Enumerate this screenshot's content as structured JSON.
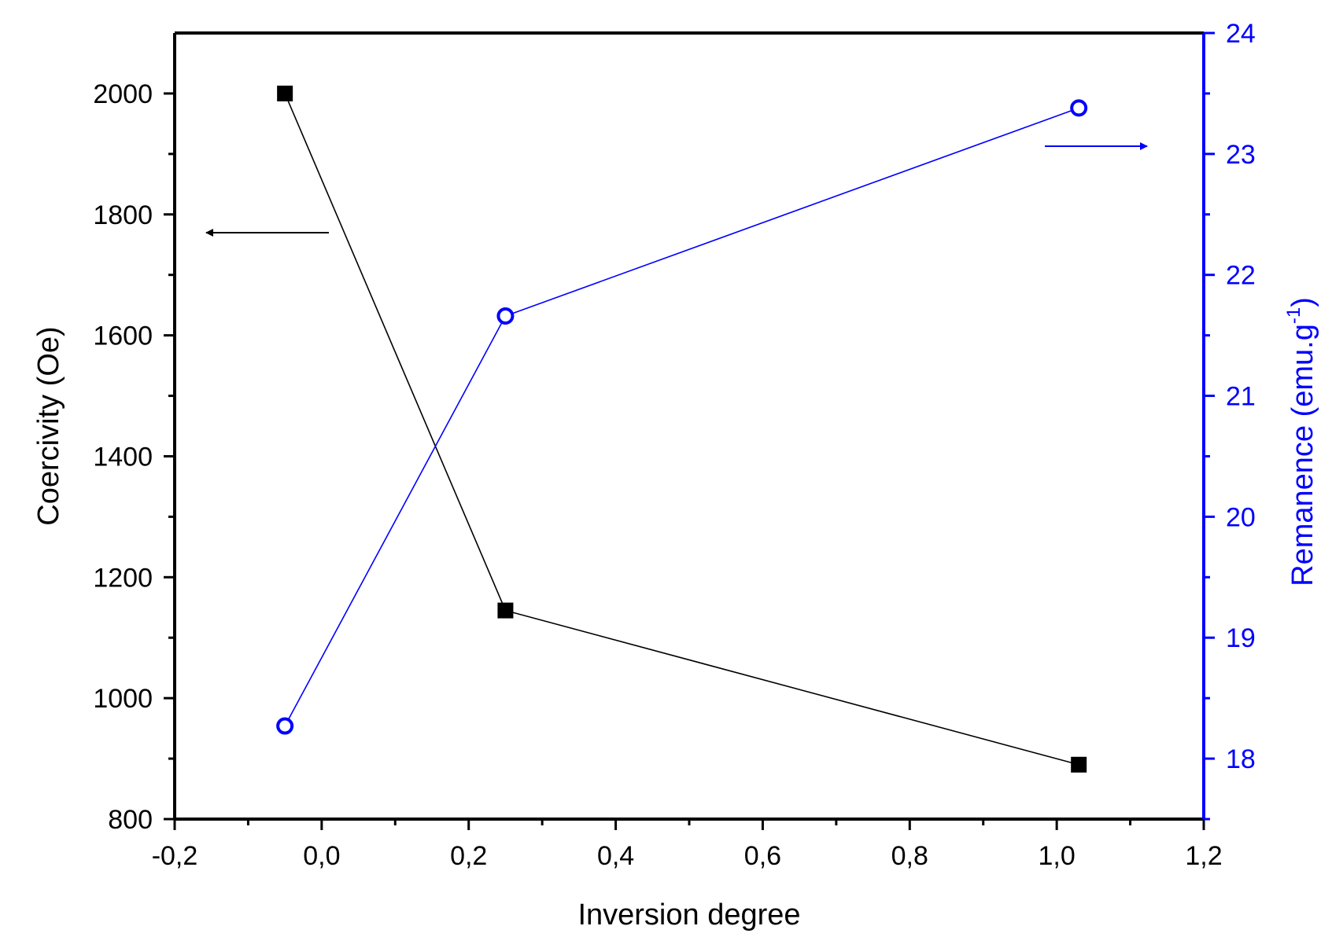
{
  "chart_data": {
    "type": "line",
    "title": "",
    "xlabel": "Inversion degree",
    "ylabel_left": "Coercivity (Oe)",
    "ylabel_right": "Remanence (emu.g-1)",
    "ylabel_right_base": "Remanence (emu.g",
    "ylabel_right_sup": "-1",
    "ylabel_right_close": ")",
    "xlim": [
      -0.2,
      1.2
    ],
    "ylim_left": [
      800,
      2100
    ],
    "ylim_right": [
      17.5,
      24
    ],
    "x_ticks": [
      -0.2,
      0.0,
      0.2,
      0.4,
      0.6,
      0.8,
      1.0,
      1.2
    ],
    "x_tick_labels": [
      "-0,2",
      "0,0",
      "0,2",
      "0,4",
      "0,6",
      "0,8",
      "1,0",
      "1,2"
    ],
    "y_left_ticks": [
      800,
      1000,
      1200,
      1400,
      1600,
      1800,
      2000
    ],
    "y_left_tick_labels": [
      "800",
      "1000",
      "1200",
      "1400",
      "1600",
      "1800",
      "2000"
    ],
    "y_right_ticks": [
      18,
      19,
      20,
      21,
      22,
      23,
      24
    ],
    "y_right_tick_labels": [
      "18",
      "19",
      "20",
      "21",
      "22",
      "23",
      "24"
    ],
    "grid": false,
    "legend": "none",
    "series": [
      {
        "axis": "left",
        "marker": "filled-square",
        "color": "#000000",
        "x": [
          -0.05,
          0.25,
          1.03
        ],
        "y": [
          2000,
          1145,
          890
        ]
      },
      {
        "axis": "right",
        "marker": "open-circle",
        "color": "#0000ff",
        "x": [
          -0.05,
          0.25,
          1.03
        ],
        "y": [
          18.27,
          21.66,
          23.38
        ]
      }
    ],
    "annotations": [
      {
        "type": "arrow",
        "direction": "left",
        "points_to_axis": "left",
        "color": "#000000"
      },
      {
        "type": "arrow",
        "direction": "right",
        "points_to_axis": "right",
        "color": "#0000ff"
      }
    ],
    "colors": {
      "left_axis": "#000000",
      "right_axis": "#0000ff",
      "frame": "#000000"
    }
  }
}
